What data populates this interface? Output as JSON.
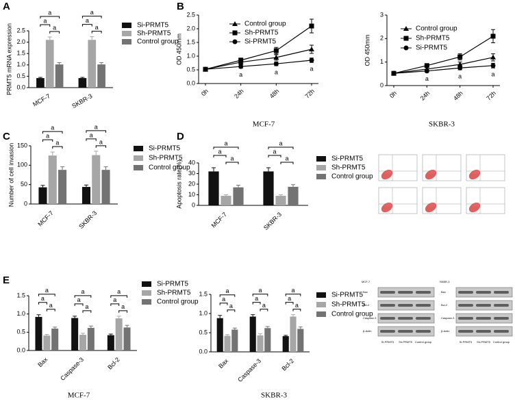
{
  "panels": [
    "A",
    "B",
    "C",
    "D",
    "E"
  ],
  "chart_data": [
    {
      "type": "bar",
      "y_label": "PRMT5 mRNA expression",
      "categories": [
        "MCF-7",
        "SKBR-3"
      ],
      "series": [
        {
          "name": "Si-PRMT5",
          "color": "#111111",
          "values": [
            0.42,
            0.42
          ],
          "errors": [
            0.03,
            0.03
          ]
        },
        {
          "name": "Sh-PRMT5",
          "color": "#a6a6a6",
          "values": [
            2.1,
            2.1
          ],
          "errors": [
            0.13,
            0.14
          ]
        },
        {
          "name": "Control group",
          "color": "#737373",
          "values": [
            1.02,
            1.02
          ],
          "errors": [
            0.08,
            0.08
          ]
        }
      ],
      "ylim": [
        0,
        2.5
      ],
      "yticks": [
        {
          "value": 0,
          "label": "0.0"
        },
        {
          "value": 0.5,
          "label": "0.5"
        },
        {
          "value": 1,
          "label": "1.0"
        },
        {
          "value": 1.5,
          "label": "1.5"
        },
        {
          "value": 2,
          "label": "2.0"
        },
        {
          "value": 2.5,
          "label": "2.5"
        }
      ],
      "significance_label": "a"
    },
    {
      "type": "line",
      "title": "MCF-7",
      "y_label": "OD 450mm",
      "categories": [
        "0h",
        "24h",
        "48h",
        "72h"
      ],
      "series": [
        {
          "name": "Control group",
          "color": "#000000",
          "marker": "triangle",
          "values": [
            0.52,
            0.78,
            0.95,
            1.25
          ],
          "errors": [
            0.03,
            0.08,
            0.1,
            0.15
          ]
        },
        {
          "name": "Sh-PRMT5",
          "color": "#000000",
          "marker": "square",
          "values": [
            0.52,
            0.85,
            1.2,
            2.1
          ],
          "errors": [
            0.03,
            0.08,
            0.12,
            0.25
          ]
        },
        {
          "name": "Si-PRMT5",
          "color": "#000000",
          "marker": "circle",
          "values": [
            0.52,
            0.62,
            0.72,
            0.85
          ],
          "errors": [
            0.03,
            0.06,
            0.07,
            0.08
          ]
        }
      ],
      "ylim": [
        0,
        2.5
      ],
      "yticks": [
        {
          "value": 0,
          "label": "0.0"
        },
        {
          "value": 0.5,
          "label": "0.5"
        },
        {
          "value": 1,
          "label": "1.0"
        },
        {
          "value": 1.5,
          "label": "1.5"
        },
        {
          "value": 2,
          "label": "2.0"
        },
        {
          "value": 2.5,
          "label": "2.5"
        }
      ],
      "significance_label": "a"
    },
    {
      "type": "line",
      "title": "SKBR-3",
      "y_label": "OD 450mm",
      "categories": [
        "0h",
        "24h",
        "48h",
        "72h"
      ],
      "series": [
        {
          "name": "Control group",
          "color": "#000000",
          "marker": "triangle",
          "values": [
            0.52,
            0.7,
            0.9,
            1.2
          ],
          "errors": [
            0.03,
            0.07,
            0.1,
            0.15
          ]
        },
        {
          "name": "Sh-PRMT5",
          "color": "#000000",
          "marker": "square",
          "values": [
            0.52,
            0.85,
            1.22,
            2.1
          ],
          "errors": [
            0.03,
            0.08,
            0.13,
            0.28
          ]
        },
        {
          "name": "Si-PRMT5",
          "color": "#000000",
          "marker": "circle",
          "values": [
            0.52,
            0.62,
            0.75,
            0.85
          ],
          "errors": [
            0.03,
            0.06,
            0.08,
            0.1
          ]
        }
      ],
      "ylim": [
        0,
        3
      ],
      "yticks": [
        0,
        1,
        2,
        3
      ],
      "significance_label": "a"
    },
    {
      "type": "bar",
      "y_label": "Number of cell invasion",
      "categories": [
        "MCF-7",
        "SKBR-3"
      ],
      "series": [
        {
          "name": "Si-PRMT5",
          "color": "#111111",
          "values": [
            43,
            44
          ],
          "errors": [
            5,
            5
          ]
        },
        {
          "name": "Sh-PRMT5",
          "color": "#a6a6a6",
          "values": [
            125,
            126
          ],
          "errors": [
            9,
            10
          ]
        },
        {
          "name": "Control group",
          "color": "#737373",
          "values": [
            88,
            88
          ],
          "errors": [
            8,
            8
          ]
        }
      ],
      "ylim": [
        0,
        150
      ],
      "yticks": [
        0,
        50,
        100,
        150
      ],
      "significance_label": "a"
    },
    {
      "type": "bar",
      "y_label": "Apoptosis rate(%)",
      "categories": [
        "MCF-7",
        "SKBR-3"
      ],
      "series": [
        {
          "name": "Si-PRMT5",
          "color": "#111111",
          "values": [
            32,
            32
          ],
          "errors": [
            3.5,
            3.5
          ]
        },
        {
          "name": "Sh-PRMT5",
          "color": "#a6a6a6",
          "values": [
            9,
            9
          ],
          "errors": [
            1,
            1
          ]
        },
        {
          "name": "Control group",
          "color": "#737373",
          "values": [
            17,
            17.5
          ],
          "errors": [
            2,
            2
          ]
        }
      ],
      "ylim": [
        0,
        40
      ],
      "yticks": [
        0,
        10,
        20,
        30,
        40
      ],
      "significance_label": "a"
    },
    {
      "type": "bar",
      "title": "MCF-7",
      "categories": [
        "Bax",
        "Caspase-3",
        "Bcl-2"
      ],
      "series": [
        {
          "name": "Si-PRMT5",
          "color": "#111111",
          "values": [
            0.92,
            0.89,
            0.42
          ],
          "errors": [
            0.06,
            0.05,
            0.03
          ]
        },
        {
          "name": "Sh-PRMT5",
          "color": "#a6a6a6",
          "values": [
            0.41,
            0.43,
            0.88
          ],
          "errors": [
            0.03,
            0.04,
            0.06
          ]
        },
        {
          "name": "Control group",
          "color": "#737373",
          "values": [
            0.6,
            0.62,
            0.63
          ],
          "errors": [
            0.04,
            0.05,
            0.06
          ]
        }
      ],
      "ylim": [
        0,
        1.5
      ],
      "yticks": [
        {
          "value": 0,
          "label": "0.0"
        },
        {
          "value": 0.5,
          "label": "0.5"
        },
        {
          "value": 1,
          "label": "1.0"
        },
        {
          "value": 1.5,
          "label": "1.5"
        }
      ],
      "significance_label": "a"
    },
    {
      "type": "bar",
      "title": "SKBR-3",
      "categories": [
        "Bax",
        "Caspase-3",
        "Bcl-2"
      ],
      "series": [
        {
          "name": "Si-PRMT5",
          "color": "#111111",
          "values": [
            0.88,
            0.92,
            0.41
          ],
          "errors": [
            0.07,
            0.05,
            0.02
          ]
        },
        {
          "name": "Sh-PRMT5",
          "color": "#a6a6a6",
          "values": [
            0.42,
            0.43,
            0.92
          ],
          "errors": [
            0.03,
            0.04,
            0.05
          ]
        },
        {
          "name": "Control group",
          "color": "#737373",
          "values": [
            0.58,
            0.62,
            0.6
          ],
          "errors": [
            0.04,
            0.04,
            0.05
          ]
        }
      ],
      "ylim": [
        0,
        1.5
      ],
      "yticks": [
        {
          "value": 0,
          "label": "0.0"
        },
        {
          "value": 0.5,
          "label": "0.5"
        },
        {
          "value": 1,
          "label": "1.0"
        },
        {
          "value": 1.5,
          "label": "1.5"
        }
      ],
      "significance_label": "a"
    }
  ],
  "blots": [
    {
      "cell": "MCF-7",
      "rows": [
        "Bax",
        "Bcl-2",
        "Caspase-3",
        "β-Actin"
      ],
      "columns": [
        "Si-PRMT5",
        "Sh-PRMT5",
        "Control group"
      ]
    },
    {
      "cell": "SKBR-3",
      "rows": [
        "Bax",
        "Bcl-2",
        "Caspase-3",
        "β-Actin"
      ],
      "columns": [
        "Si-PRMT5",
        "Sh-PRMT5",
        "Control group"
      ]
    }
  ]
}
